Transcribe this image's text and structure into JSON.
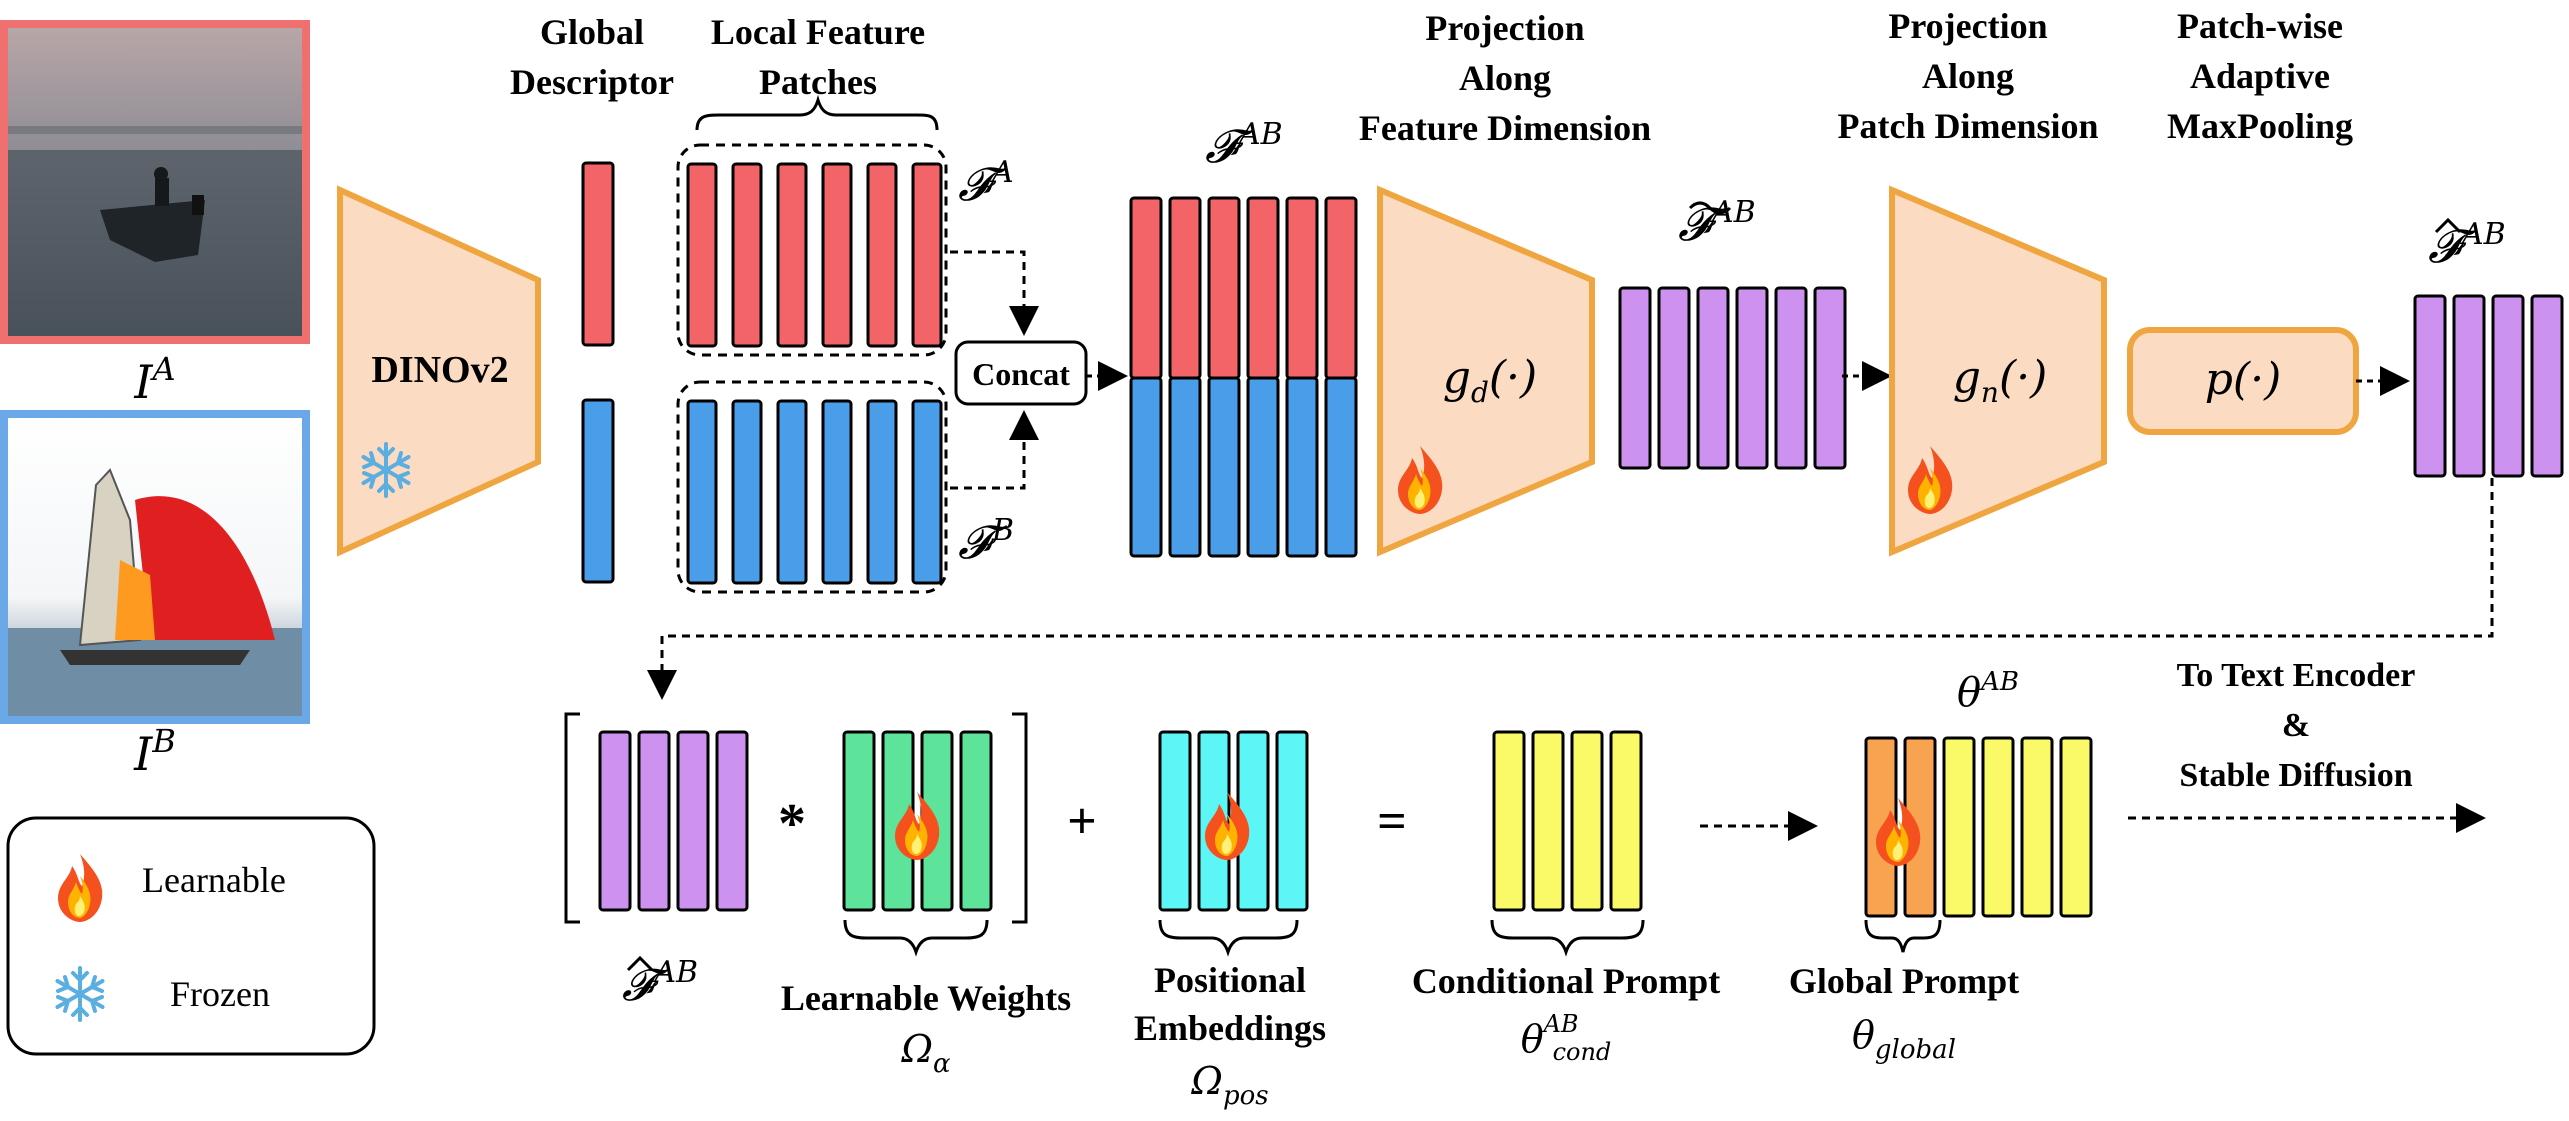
{
  "colors": {
    "red": "#f26467",
    "blue": "#4a9de8",
    "purple": "#cd92f0",
    "green": "#5de39a",
    "cyan": "#5cf6f6",
    "yellow": "#fafa68",
    "orange_block": "#f8a350",
    "trapezoid_fill": "#fbdcc3",
    "trapezoid_stroke": "#f0a640",
    "image_a_border": "#f07070",
    "image_b_border": "#6aa8e8"
  },
  "images": {
    "a": {
      "label": "I^A",
      "icon": "boat-photo"
    },
    "b": {
      "label": "I^B",
      "icon": "sailboat-photo"
    }
  },
  "encoder": {
    "label": "DINOv2",
    "state_icon": "snowflake-icon"
  },
  "headers": {
    "global_descriptor": [
      "Global",
      "Descriptor"
    ],
    "local_feature_patches": [
      "Local Feature",
      "Patches"
    ],
    "proj_feature": [
      "Projection",
      "Along",
      "Feature Dimension"
    ],
    "proj_patch": [
      "Projection",
      "Along",
      "Patch Dimension"
    ],
    "patchwise_pool": [
      "Patch-wise",
      "Adaptive",
      "MaxPooling"
    ]
  },
  "labels": {
    "f_a": "𝓕",
    "f_a_sup": "A",
    "f_b_sup": "B",
    "f_ab_sup": "AB",
    "concat": "Concat",
    "g_d": "g",
    "g_d_sub": "d",
    "g_n_sub": "n",
    "g_arg": "(·)",
    "p_func": "p(·)",
    "theta": "θ",
    "theta_ab_sup": "AB",
    "theta_cond_sub": "cond",
    "theta_global_sub": "global",
    "omega": "Ω",
    "omega_alpha_sub": "α",
    "omega_pos_sub": "pos",
    "times": "*",
    "plus": "+",
    "equals": "="
  },
  "bottom_captions": {
    "learnable_weights": "Learnable Weights",
    "positional_embeddings": [
      "Positional",
      "Embeddings"
    ],
    "conditional_prompt": "Conditional Prompt",
    "global_prompt": "Global Prompt",
    "to_text_encoder": [
      "To Text Encoder",
      "&",
      "Stable Diffusion"
    ]
  },
  "legend": {
    "learnable": {
      "label": "Learnable",
      "icon": "fire-icon"
    },
    "frozen": {
      "label": "Frozen",
      "icon": "snowflake-icon"
    }
  }
}
